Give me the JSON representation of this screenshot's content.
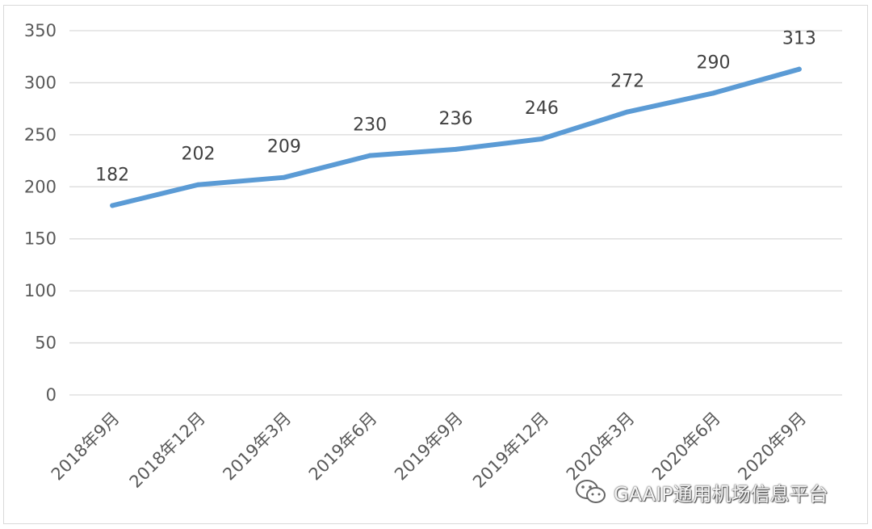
{
  "chart_data": {
    "type": "line",
    "categories": [
      "2018年9月",
      "2018年12月",
      "2019年3月",
      "2019年6月",
      "2019年9月",
      "2019年12月",
      "2020年3月",
      "2020年6月",
      "2020年9月"
    ],
    "series": [
      {
        "values": [
          182,
          202,
          209,
          230,
          236,
          246,
          272,
          290,
          313
        ],
        "color": "#5b9bd5"
      }
    ],
    "data_labels": [
      "182",
      "202",
      "209",
      "230",
      "236",
      "246",
      "272",
      "290",
      "313"
    ],
    "yticks": [
      0,
      50,
      100,
      150,
      200,
      250,
      300,
      350
    ],
    "ylim": [
      0,
      350
    ],
    "title": "",
    "xlabel": "",
    "ylabel": "",
    "grid": true,
    "legend": "none"
  },
  "watermark": {
    "icon": "wechat-icon",
    "text": "GAAIP通用机场信息平台"
  }
}
